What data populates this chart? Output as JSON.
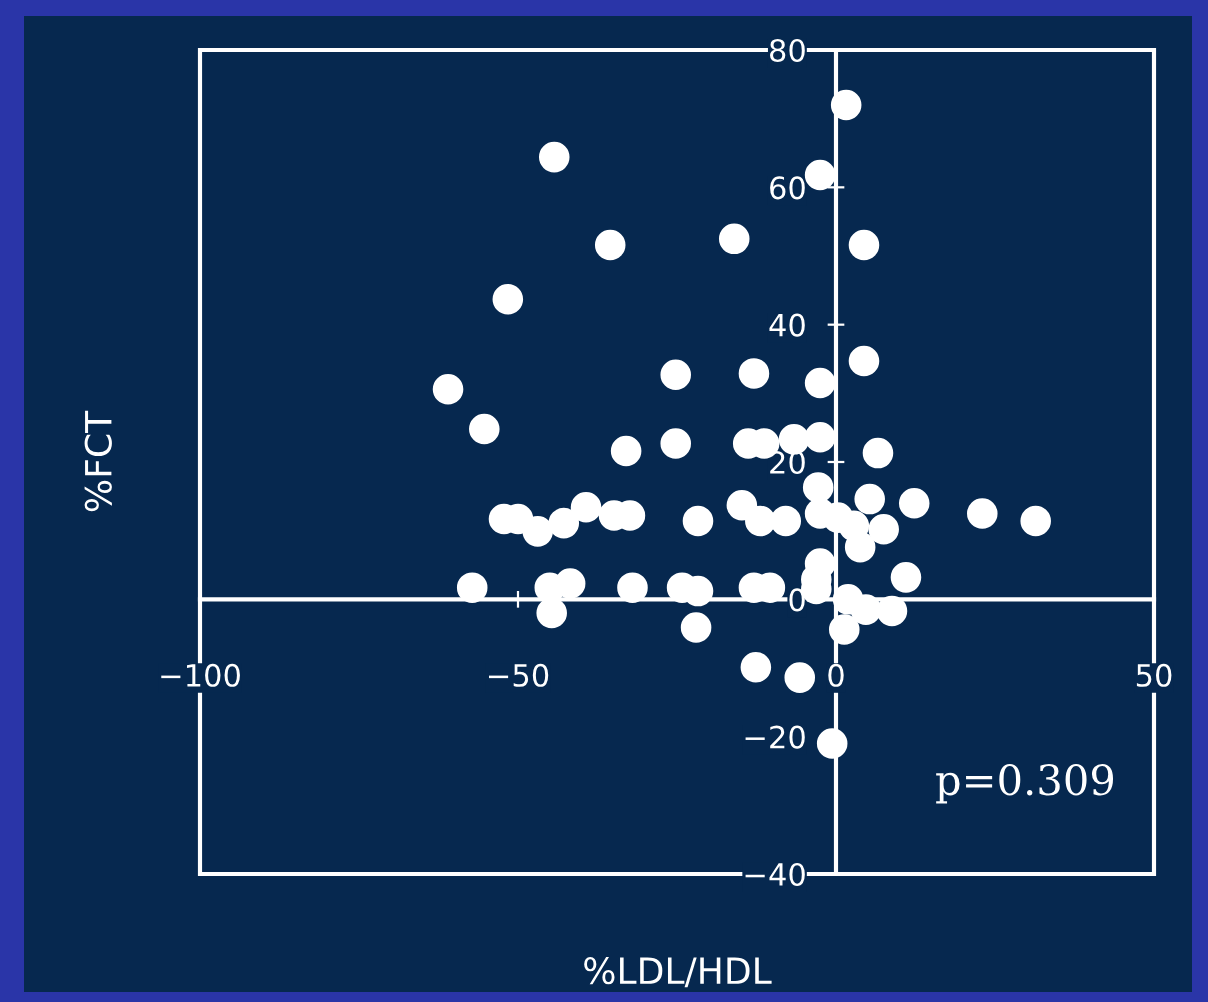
{
  "chart_data": {
    "type": "scatter",
    "xlabel": "%LDL/HDL",
    "ylabel": "%FCT",
    "annotations": [
      "p=0.309"
    ],
    "xlim": [
      -100,
      50
    ],
    "ylim": [
      -40,
      80
    ],
    "xticks": [
      -100,
      -50,
      0,
      50
    ],
    "yticks": [
      -40,
      -20,
      0,
      20,
      40,
      60,
      80
    ],
    "grid": false,
    "legend": false,
    "marker": "circle",
    "series": [
      {
        "color": "#ffffff",
        "x": [
          1.6,
          -44.3,
          -2.5,
          -35.5,
          -16,
          4.4,
          -51.6,
          -61,
          -55.3,
          -25.2,
          -12.9,
          -2.5,
          4.4,
          -33,
          -25.2,
          -13.8,
          -11.3,
          -6.6,
          -2.5,
          6.6,
          -52.2,
          -50,
          -46.9,
          -42.8,
          -39.3,
          -34.9,
          -32.4,
          -21.7,
          -14.8,
          -11.9,
          -7.9,
          -2.8,
          -2.5,
          0.3,
          2.8,
          5.3,
          12.3,
          7.5,
          3.8,
          23,
          31.4,
          -57.2,
          -45,
          -41.8,
          -32,
          -24.2,
          -21.7,
          -12.9,
          -10.4,
          -3.1,
          1.9,
          11,
          -44.7,
          -22,
          -12.6,
          -5.7,
          -0.6,
          1.3,
          4.7,
          8.8,
          -2.5,
          -3.1
        ],
        "values": [
          72.0,
          64.4,
          61.8,
          51.6,
          52.5,
          51.6,
          43.7,
          30.6,
          24.8,
          32.7,
          32.9,
          31.5,
          34.7,
          21.6,
          22.7,
          22.7,
          22.7,
          23.3,
          23.6,
          21.3,
          11.7,
          11.7,
          9.9,
          11.1,
          13.4,
          12.2,
          12.2,
          11.4,
          13.7,
          11.4,
          11.4,
          16.3,
          12.5,
          11.9,
          10.7,
          14.6,
          14,
          10.2,
          7.6,
          12.5,
          11.4,
          1.7,
          1.7,
          2.3,
          1.7,
          1.7,
          1.2,
          1.7,
          1.7,
          2.9,
          0,
          3.2,
          -2,
          -4.1,
          -9.9,
          -11.4,
          -21,
          -4.4,
          -1.5,
          -1.7,
          5.2,
          1.5
        ]
      }
    ]
  }
}
